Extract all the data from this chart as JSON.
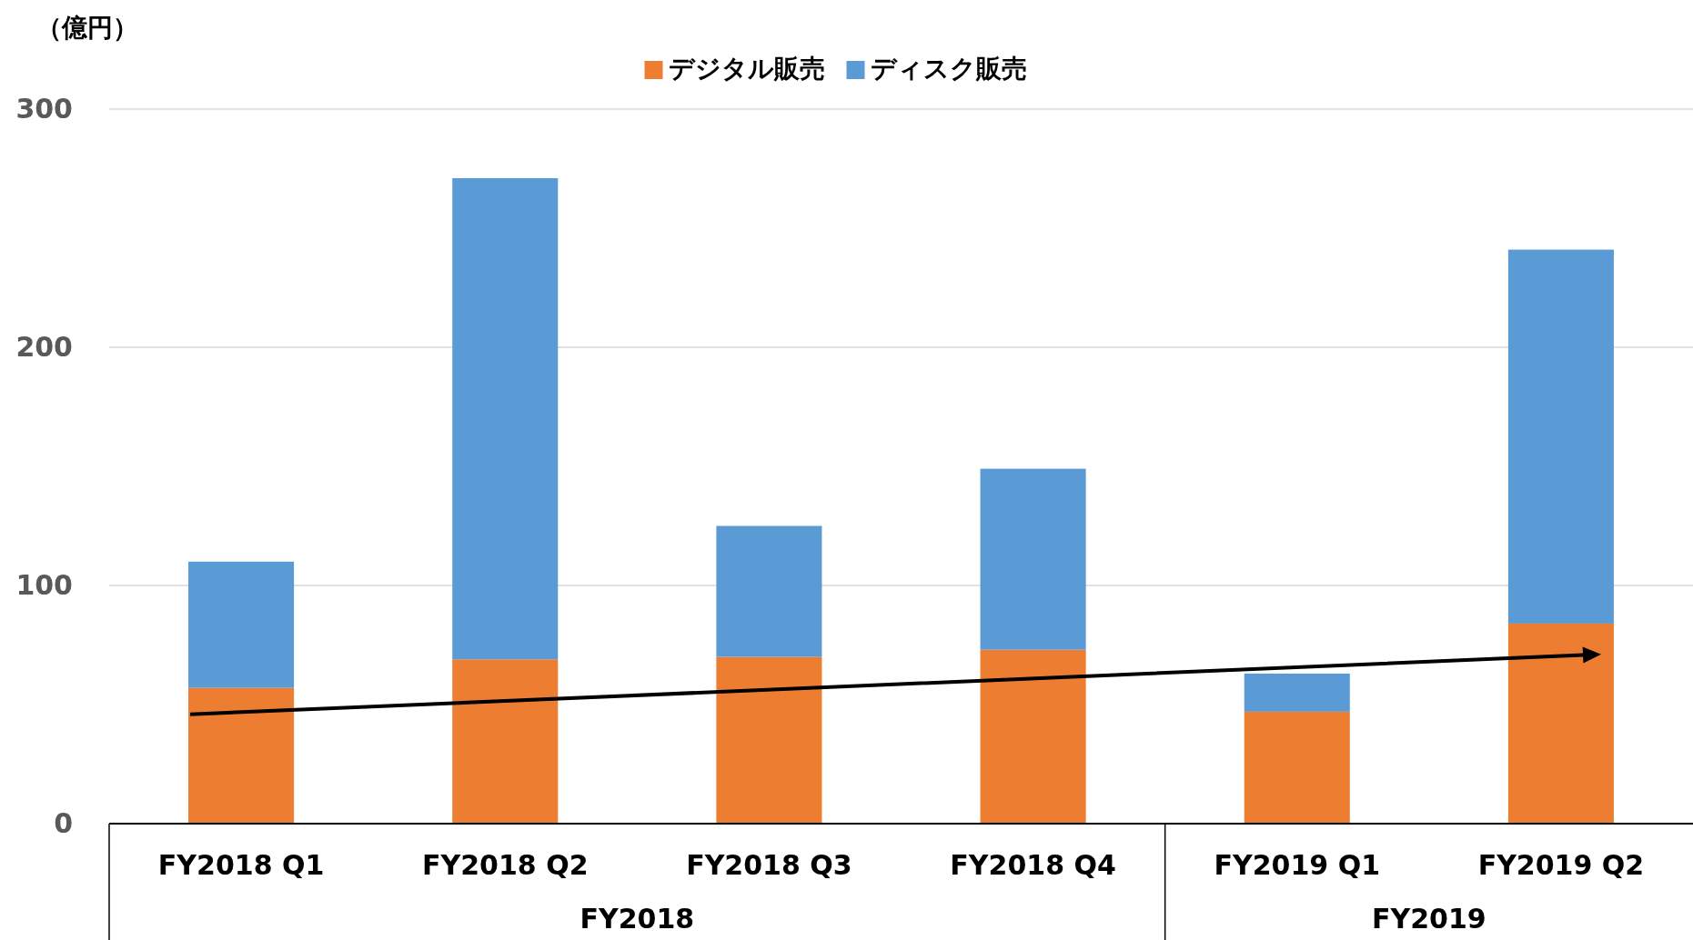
{
  "chart_data": {
    "type": "bar",
    "stacked": true,
    "ylabel": "（億円）",
    "categories": [
      "FY2018 Q1",
      "FY2018 Q2",
      "FY2018 Q3",
      "FY2018 Q4",
      "FY2019 Q1",
      "FY2019 Q2"
    ],
    "series": [
      {
        "name": "デジタル販売",
        "color": "#ed7d31",
        "values": [
          57,
          69,
          70,
          73,
          47,
          84
        ]
      },
      {
        "name": "ディスク販売",
        "color": "#5b9bd5",
        "values": [
          53,
          202,
          55,
          76,
          16,
          157
        ]
      }
    ],
    "ylim": [
      0,
      300
    ],
    "yticks": [
      0,
      100,
      200,
      300
    ],
    "grid": "y",
    "legend": "top",
    "annotations": [
      "FY2018",
      "FY2019"
    ]
  }
}
